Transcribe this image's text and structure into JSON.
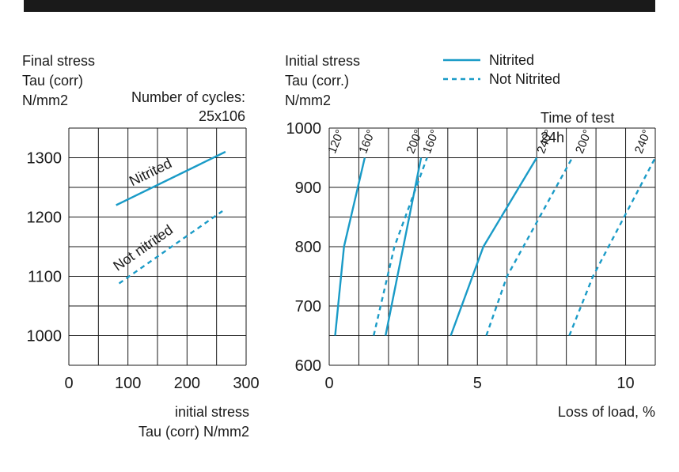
{
  "colors": {
    "series": "#1a9bc7",
    "text": "#1a1a1a",
    "bar": "#1a1a1a"
  },
  "chart_data": [
    {
      "type": "line",
      "id": "left",
      "title": "",
      "ylabel_lines": [
        "Final stress",
        "Tau (corr)",
        "N/mm2"
      ],
      "xlabel_lines": [
        "initial stress",
        "Tau (corr) N/mm2"
      ],
      "annotation_lines": [
        "Number of cycles:",
        "25x106"
      ],
      "xlim": [
        0,
        300
      ],
      "ylim": [
        950,
        1350
      ],
      "xticks": [
        0,
        100,
        200,
        300
      ],
      "yticks": [
        1000,
        1100,
        1200,
        1300
      ],
      "series": [
        {
          "name": "Nitrited",
          "label": "Nitrited",
          "dashed": false,
          "points": [
            [
              80,
              1220
            ],
            [
              265,
              1310
            ]
          ]
        },
        {
          "name": "Not nitrited",
          "label": "Not nitrited",
          "dashed": true,
          "points": [
            [
              85,
              1088
            ],
            [
              260,
              1210
            ]
          ]
        }
      ]
    },
    {
      "type": "line",
      "id": "right",
      "ylabel_lines": [
        "Initial stress",
        "Tau (corr.)",
        "N/mm2"
      ],
      "xlabel": "Loss of load, %",
      "annotation_lines": [
        "Time of test",
        "24h"
      ],
      "legend": [
        {
          "name": "Nitrited",
          "dashed": false
        },
        {
          "name": "Not Nitrited",
          "dashed": true
        }
      ],
      "xlim": [
        0,
        11
      ],
      "ylim": [
        600,
        1000
      ],
      "xticks": [
        0,
        5,
        10
      ],
      "yticks": [
        600,
        700,
        800,
        900,
        1000
      ],
      "series": [
        {
          "name": "Nitrited 120°",
          "label": "120°",
          "dashed": false,
          "points": [
            [
              0.2,
              650
            ],
            [
              0.5,
              800
            ],
            [
              1.2,
              950
            ]
          ]
        },
        {
          "name": "Nitrited 200°",
          "label": "200°",
          "dashed": false,
          "points": [
            [
              1.9,
              650
            ],
            [
              3.1,
              950
            ]
          ]
        },
        {
          "name": "Nitrited 240°",
          "label": "240°",
          "dashed": false,
          "points": [
            [
              4.1,
              650
            ],
            [
              5.2,
              800
            ],
            [
              7.0,
              950
            ]
          ]
        },
        {
          "name": "Not Nitrited 160°",
          "label": "160°",
          "dashed": true,
          "points": [
            [
              1.5,
              650
            ],
            [
              2.2,
              800
            ],
            [
              3.3,
              950
            ]
          ]
        },
        {
          "name": "Not Nitrited 200°",
          "label": "200°",
          "dashed": true,
          "points": [
            [
              5.3,
              650
            ],
            [
              6.0,
              750
            ],
            [
              8.2,
              950
            ]
          ]
        },
        {
          "name": "Not Nitrited 240°",
          "label": "240°",
          "dashed": true,
          "points": [
            [
              8.1,
              650
            ],
            [
              8.9,
              750
            ],
            [
              11.0,
              950
            ]
          ]
        }
      ],
      "line_labels": [
        {
          "text": "120°",
          "x": 0.35,
          "y": 975
        },
        {
          "text": "160°",
          "x": 1.4,
          "y": 975
        },
        {
          "text": "200°",
          "x": 3.0,
          "y": 975
        },
        {
          "text": "160°",
          "x": 3.55,
          "y": 975
        },
        {
          "text": "240°",
          "x": 7.4,
          "y": 975
        },
        {
          "text": "200°",
          "x": 8.7,
          "y": 975
        },
        {
          "text": "240°",
          "x": 10.7,
          "y": 975
        }
      ]
    }
  ]
}
